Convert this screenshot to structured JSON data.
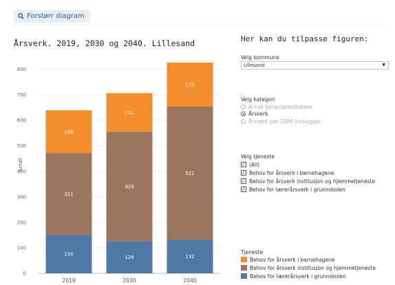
{
  "header": {
    "zoom_label": "Forstørr diagram"
  },
  "chart_data": {
    "type": "bar",
    "stacked": true,
    "title": "Årsverk. 2019, 2030 og 2040. Lillesand",
    "ylabel": "Antall",
    "xlabel": "",
    "categories": [
      "2019",
      "2030",
      "2040"
    ],
    "ylim": [
      0,
      850
    ],
    "yticks": [
      0,
      100,
      200,
      300,
      400,
      500,
      600,
      700,
      800
    ],
    "grid": true,
    "series": [
      {
        "name": "Behov for lærerårsverk i grunnskolen",
        "color": "#4e79a7",
        "values": [
          150,
          126,
          132
        ]
      },
      {
        "name": "Behov for årsverk institusjon og hjemmetjeneste",
        "color": "#9c755f",
        "values": [
          321,
          429,
          521
        ]
      },
      {
        "name": "Behov for årsverk i barnehagene",
        "color": "#f28e2b",
        "values": [
          168,
          151,
          173
        ]
      }
    ]
  },
  "panel": {
    "title": "Her kan du tilpasse figuren:",
    "kommune_label": "Velg kommune",
    "kommune_value": "Lillesand",
    "kategori_label": "Velg kategori",
    "kategori_options": [
      "Antall tjenestemottakere",
      "Årsverk",
      "Årsverk per 1000 innbygger"
    ],
    "kategori_selected": 1,
    "tjeneste_label": "Velg tjeneste",
    "tjeneste_options": [
      "(All)",
      "Behov for årsverk i barnehagene",
      "Behov for årsverk institusjon og hjemmetjeneste",
      "Behov for lærerårsverk i grunnskolen"
    ],
    "legend_title": "Tjeneste",
    "legend_items": [
      {
        "label": "Behov for årsverk i barnehagene",
        "color": "#f28e2b"
      },
      {
        "label": "Behov for årsverk institusjon og hjemmetjeneste",
        "color": "#9c755f"
      },
      {
        "label": "Behov for lærerårsverk i grunnskolen",
        "color": "#4e79a7"
      }
    ]
  }
}
